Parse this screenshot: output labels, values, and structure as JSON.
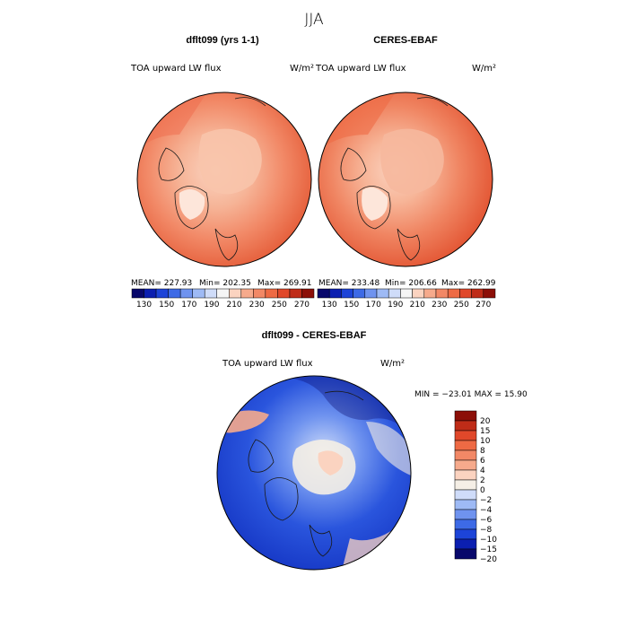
{
  "page": {
    "season": "JJA"
  },
  "chart_data": [
    {
      "type": "heatmap",
      "projection": "north-polar-stereographic",
      "title": "dflt099 (yrs 1-1)",
      "variable": "TOA upward LW flux",
      "units": "W/m²",
      "stats": {
        "mean": "227.93",
        "min": "202.35",
        "max": "269.91"
      },
      "stats_text": {
        "mean": "MEAN= 227.93",
        "min": "Min= 202.35",
        "max": "Max= 269.91"
      },
      "colorbar": {
        "orientation": "horizontal",
        "levels": [
          130,
          140,
          150,
          160,
          170,
          180,
          190,
          200,
          210,
          220,
          230,
          240,
          250,
          260,
          270
        ],
        "tick_labels": [
          "130",
          "150",
          "170",
          "190",
          "210",
          "230",
          "250",
          "270"
        ],
        "colors": [
          "#08086b",
          "#0b1fb0",
          "#1d44d8",
          "#3d6ae6",
          "#6f93ef",
          "#9ebaf5",
          "#cfdcf9",
          "#f5f5f5",
          "#fbd3c0",
          "#f6aa8c",
          "#f28866",
          "#ee6a44",
          "#e0482a",
          "#bf2c18",
          "#8c0f08"
        ]
      }
    },
    {
      "type": "heatmap",
      "projection": "north-polar-stereographic",
      "title": "CERES-EBAF",
      "variable": "TOA upward LW flux",
      "units": "W/m²",
      "stats": {
        "mean": "233.48",
        "min": "206.66",
        "max": "262.99"
      },
      "stats_text": {
        "mean": "MEAN= 233.48",
        "min": "Min= 206.66",
        "max": "Max= 262.99"
      },
      "colorbar": {
        "orientation": "horizontal",
        "levels": [
          130,
          140,
          150,
          160,
          170,
          180,
          190,
          200,
          210,
          220,
          230,
          240,
          250,
          260,
          270
        ],
        "tick_labels": [
          "130",
          "150",
          "170",
          "190",
          "210",
          "230",
          "250",
          "270"
        ],
        "colors": [
          "#08086b",
          "#0b1fb0",
          "#1d44d8",
          "#3d6ae6",
          "#6f93ef",
          "#9ebaf5",
          "#cfdcf9",
          "#f5f5f5",
          "#fbd3c0",
          "#f6aa8c",
          "#f28866",
          "#ee6a44",
          "#e0482a",
          "#bf2c18",
          "#8c0f08"
        ]
      }
    },
    {
      "type": "heatmap",
      "projection": "north-polar-stereographic",
      "title": "dflt099 - CERES-EBAF",
      "variable": "TOA upward LW flux",
      "units": "W/m²",
      "stats": {
        "min": "-23.01",
        "max": "15.90"
      },
      "stats_text": "MIN = −23.01 MAX =  15.90",
      "colorbar": {
        "orientation": "vertical",
        "levels": [
          20,
          15,
          10,
          8,
          6,
          4,
          2,
          0,
          -2,
          -4,
          -6,
          -8,
          -10,
          -15,
          -20
        ],
        "tick_labels": [
          "20",
          "15",
          "10",
          "8",
          "6",
          "4",
          "2",
          "0",
          "−2",
          "−4",
          "−6",
          "−8",
          "−10",
          "−15",
          "−20"
        ],
        "colors": [
          "#8c0f08",
          "#bf2c18",
          "#e0482a",
          "#ee6a44",
          "#f28866",
          "#f6aa8c",
          "#fbd3c0",
          "#f5efe6",
          "#cfdcf9",
          "#9ebaf5",
          "#6f93ef",
          "#3d6ae6",
          "#1d44d8",
          "#0b1fb0",
          "#08086b"
        ]
      }
    }
  ]
}
